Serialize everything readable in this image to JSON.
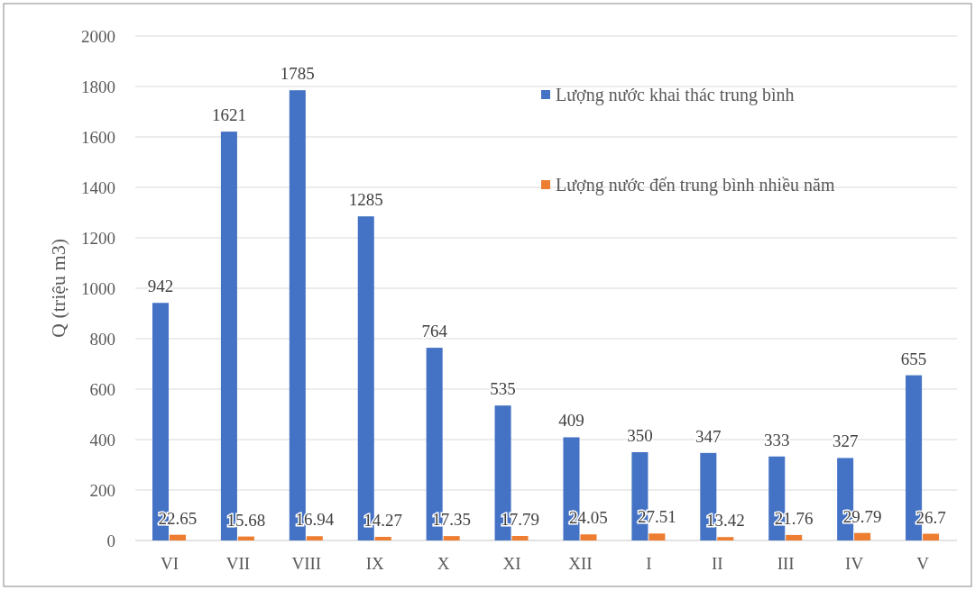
{
  "chart_data": {
    "type": "bar",
    "ylabel": "Q (triệu m3)",
    "categories": [
      "VI",
      "VII",
      "VIII",
      "IX",
      "X",
      "XI",
      "XII",
      "I",
      "II",
      "III",
      "IV",
      "V"
    ],
    "series": [
      {
        "name": "Lượng nước khai thác trung bình",
        "color": "#4472c4",
        "values": [
          942,
          1621,
          1785,
          1285,
          764,
          535,
          409,
          350,
          347,
          333,
          327,
          655
        ]
      },
      {
        "name": "Lượng nước đến trung bình nhiều năm",
        "color": "#ed7d31",
        "values": [
          22.65,
          15.68,
          16.94,
          14.27,
          17.35,
          17.79,
          24.05,
          27.51,
          13.42,
          21.76,
          29.79,
          26.7
        ]
      }
    ],
    "ylim": [
      0,
      2000
    ],
    "yticks": [
      0,
      200,
      400,
      600,
      800,
      1000,
      1200,
      1400,
      1600,
      1800,
      2000
    ],
    "grid": "y",
    "legend": "top right",
    "data_labels": true
  }
}
